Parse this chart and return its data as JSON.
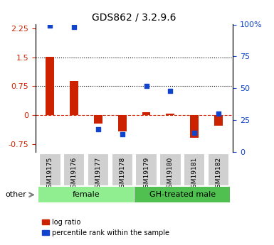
{
  "title": "GDS862 / 3.2.9.6",
  "samples": [
    "GSM19175",
    "GSM19176",
    "GSM19177",
    "GSM19178",
    "GSM19179",
    "GSM19180",
    "GSM19181",
    "GSM19182"
  ],
  "log_ratio": [
    1.52,
    0.88,
    -0.22,
    -0.42,
    0.07,
    0.04,
    -0.58,
    -0.28
  ],
  "percentile_rank": [
    99,
    98,
    18,
    14,
    52,
    48,
    15,
    30
  ],
  "groups": [
    {
      "label": "female",
      "start": 0,
      "end": 3,
      "color": "#90ee90"
    },
    {
      "label": "GH-treated male",
      "start": 4,
      "end": 7,
      "color": "#50c050"
    }
  ],
  "ylim_left": [
    -0.95,
    2.35
  ],
  "ylim_right": [
    0,
    100
  ],
  "yticks_left": [
    -0.75,
    0,
    0.75,
    1.5,
    2.25
  ],
  "yticks_right": [
    0,
    25,
    50,
    75,
    100
  ],
  "hlines": [
    0,
    0.75,
    1.5
  ],
  "bar_color": "#cc2200",
  "dot_color": "#1144cc",
  "dot_size": 25,
  "bar_width": 0.35,
  "legend_labels": [
    "log ratio",
    "percentile rank within the sample"
  ],
  "other_label": "other"
}
